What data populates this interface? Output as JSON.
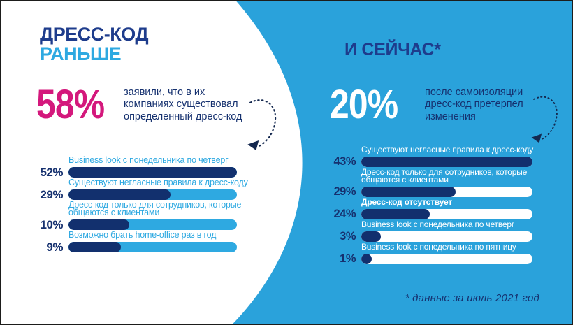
{
  "colors": {
    "bg_blue": "#2AA2DB",
    "light_blue": "#2EA9E1",
    "navy": "#12306E",
    "navy_text": "#16316F",
    "title_navy": "#1E3C8C",
    "pink": "#D4187C",
    "white": "#FFFFFF",
    "arrow": "#14284F",
    "frame_border": "#1D1D1B"
  },
  "left_panel": {
    "title_line1": "ДРЕСС-КОД",
    "title_line2": "РАНЬШЕ",
    "stat_value": "58%",
    "stat_lines": [
      "заявили, что в их",
      "компаниях существовал",
      "определенный дресс-код"
    ]
  },
  "right_panel": {
    "title": "И СЕЙЧАС*",
    "stat_value": "20%",
    "stat_lines": [
      "после самоизоляции",
      "дресс-код претерпел",
      "изменения"
    ]
  },
  "footnote": "* данные за июль 2021 год",
  "chart_data": [
    {
      "type": "bar",
      "orientation": "horizontal",
      "panel": "before",
      "title": "ДРЕСС-КОД РАНЬШЕ",
      "categories": [
        "Business look с понедельника по четверг",
        "Существуют негласные правила к дресс-коду",
        "Дресс-код только для сотрудников, которые общаются с клиентами",
        "Возможно брать home-office раз в год"
      ],
      "values": [
        52,
        29,
        10,
        9
      ],
      "value_labels": [
        "52%",
        "29%",
        "10%",
        "9%"
      ],
      "label_lines": [
        [
          "Business look с понедельника по четверг"
        ],
        [
          "Существуют негласные правила к дресс-коду"
        ],
        [
          "Дресс-код только для сотрудников, которые",
          "общаются с клиентами"
        ],
        [
          "Возможно брать home-office раз в год"
        ]
      ],
      "bold_labels": [
        false,
        false,
        false,
        false
      ],
      "fill_fractions": [
        1.0,
        0.605,
        0.36,
        0.31
      ],
      "xlim": [
        0,
        52
      ],
      "unit": "%",
      "track_color": "#2EA9E1",
      "fill_color": "#12306E",
      "label_color": "#2EA9E1",
      "value_color": "#16316F"
    },
    {
      "type": "bar",
      "orientation": "horizontal",
      "panel": "now",
      "title": "И СЕЙЧАС (июль 2021)",
      "categories": [
        "Существуют негласные правила к дресс-коду",
        "Дресс-код только для сотрудников, которые общаются с клиентами",
        "Дресс-код отсутствует",
        "Business look с понедельника по четверг",
        "Business look с понедельника по пятницу"
      ],
      "values": [
        43,
        29,
        24,
        3,
        1
      ],
      "value_labels": [
        "43%",
        "29%",
        "24%",
        "3%",
        "1%"
      ],
      "label_lines": [
        [
          "Существуют негласные правила к дресс-коду"
        ],
        [
          "Дресс-код только для сотрудников, которые",
          "общаются с клиентами"
        ],
        [
          "Дресс-код отсутствует"
        ],
        [
          "Business look с понедельника по четверг"
        ],
        [
          "Business look с понедельника по пятницу"
        ]
      ],
      "bold_labels": [
        false,
        false,
        true,
        false,
        false
      ],
      "fill_fractions": [
        1.0,
        0.55,
        0.4,
        0.115,
        0.062
      ],
      "xlim": [
        0,
        43
      ],
      "unit": "%",
      "track_color": "#FFFFFF",
      "fill_color": "#12306E",
      "label_color": "#FFFFFF",
      "value_color": "#16316F"
    }
  ]
}
